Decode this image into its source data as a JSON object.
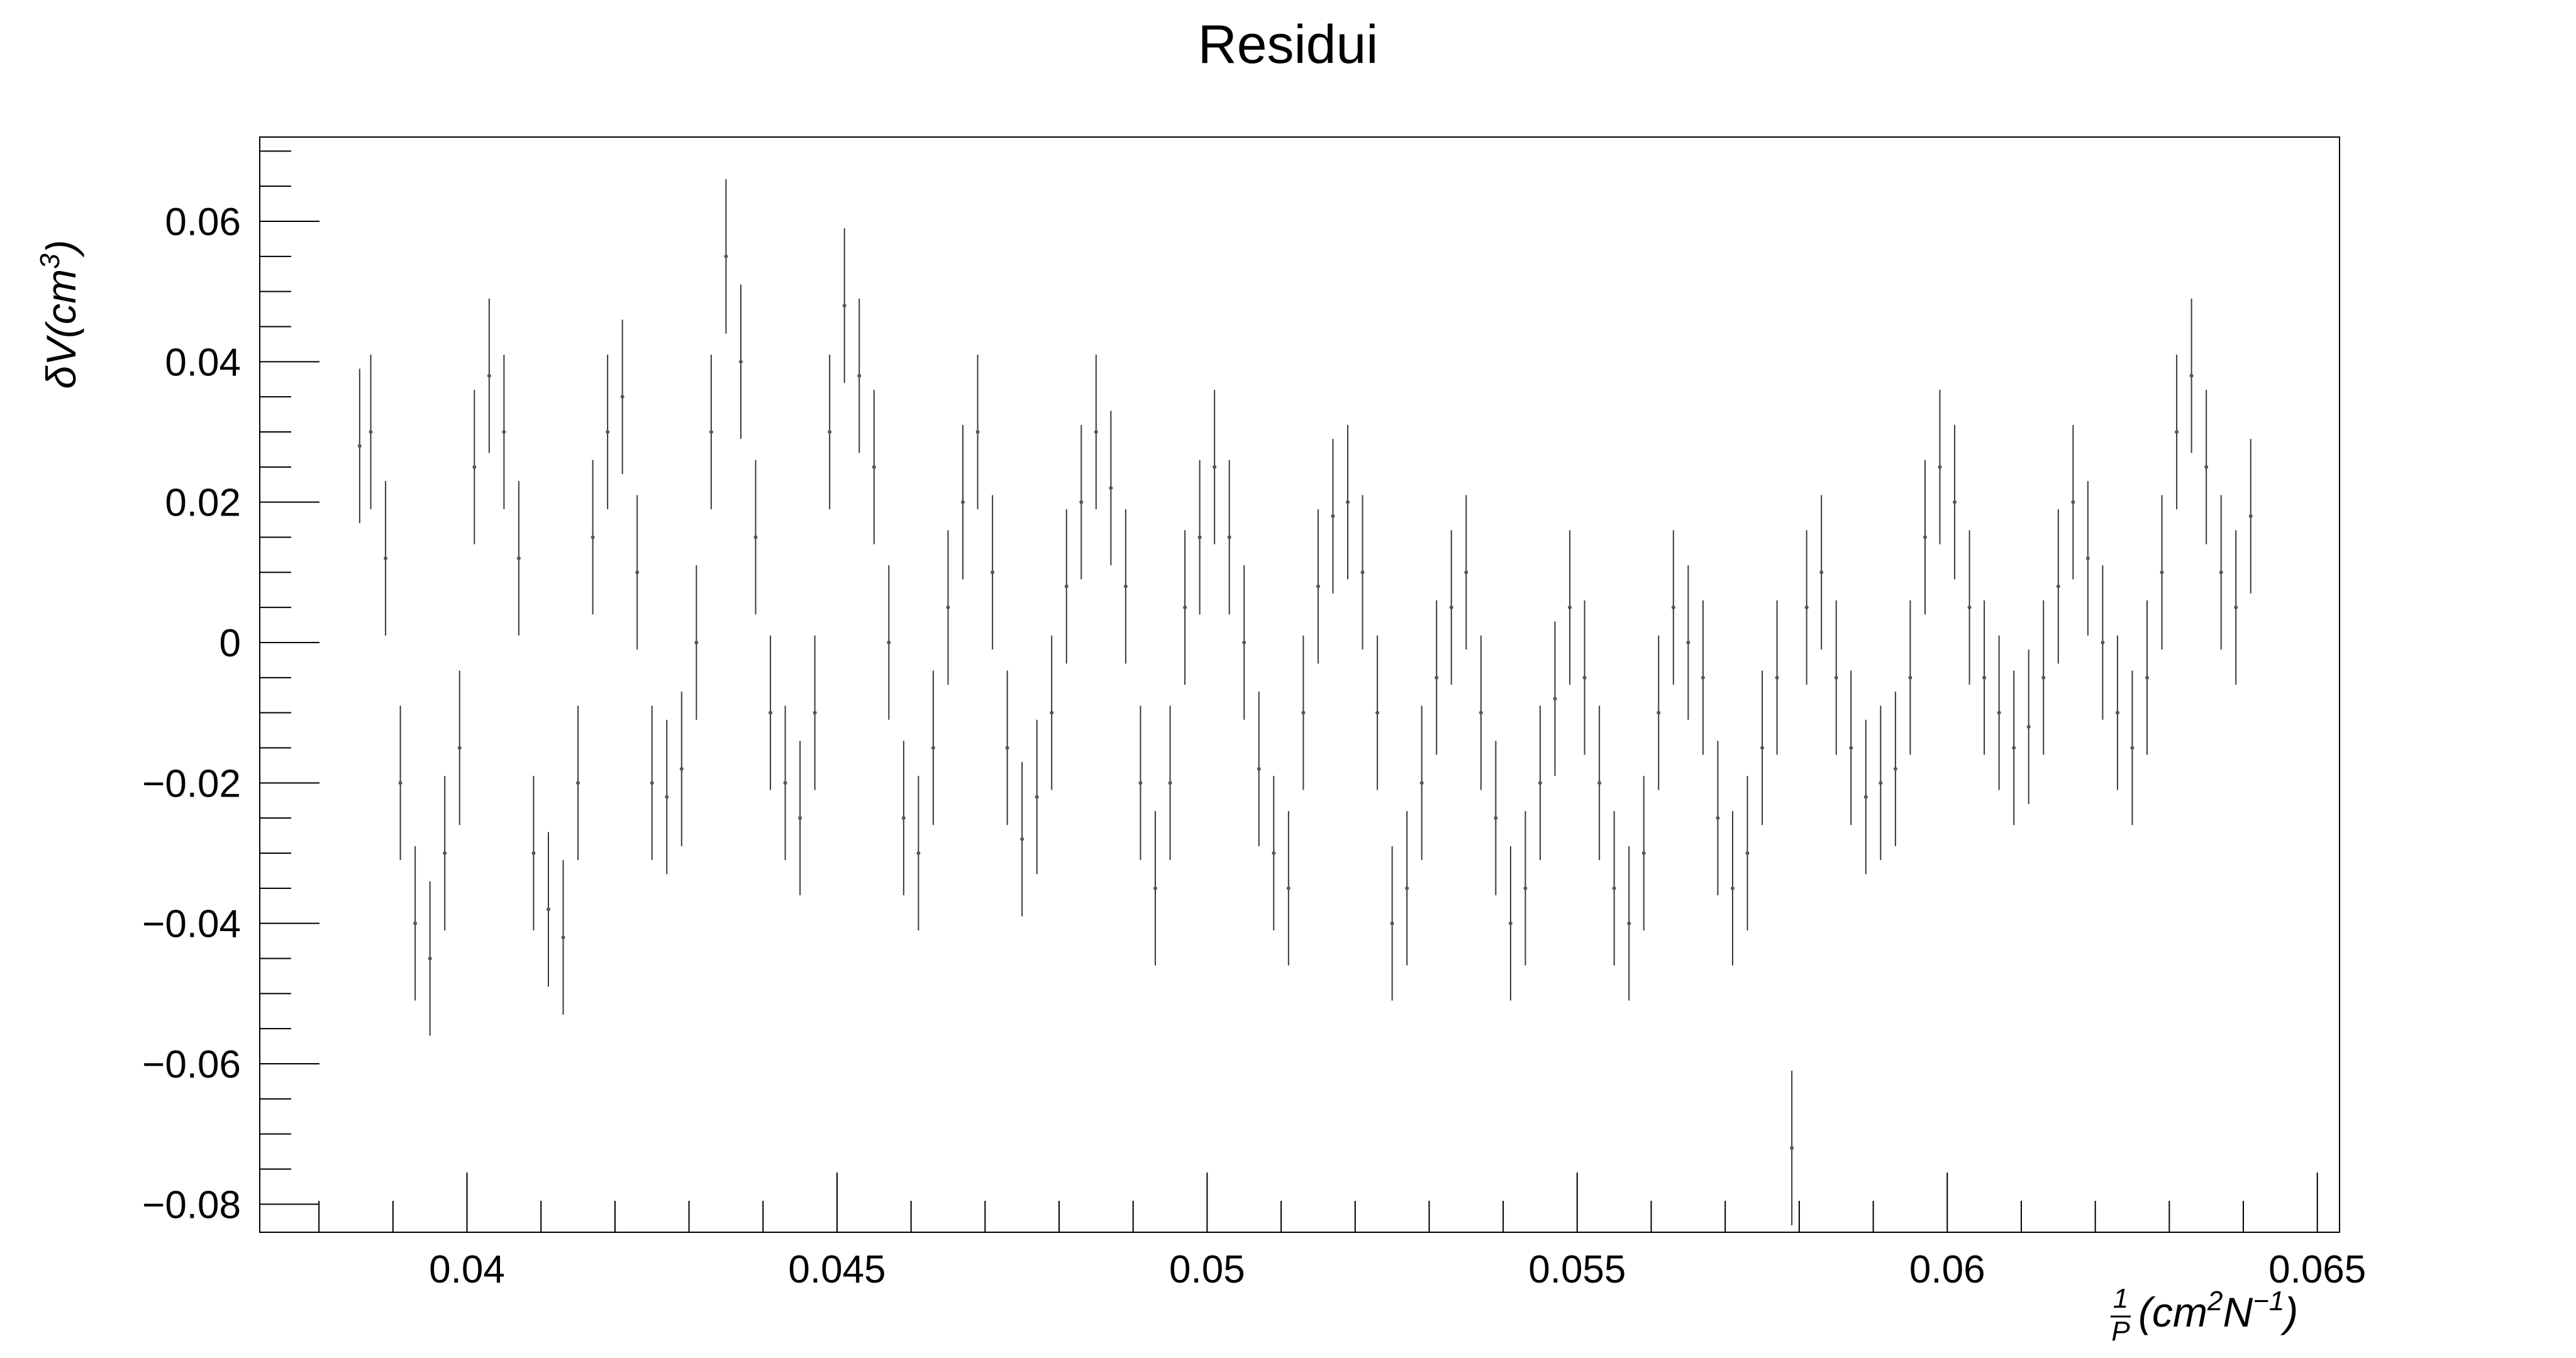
{
  "chart_data": {
    "type": "scatter",
    "title": "Residui",
    "xlabel": "1/P (cm^2 N^-1)",
    "ylabel": "δV(cm^3)",
    "xlim": [
      0.0372,
      0.0653
    ],
    "ylim": [
      -0.084,
      0.072
    ],
    "grid": false,
    "legend": "none",
    "x_ticks": [
      {
        "value": 0.04,
        "label": "0.04"
      },
      {
        "value": 0.045,
        "label": "0.045"
      },
      {
        "value": 0.05,
        "label": "0.05"
      },
      {
        "value": 0.055,
        "label": "0.055"
      },
      {
        "value": 0.06,
        "label": "0.06"
      },
      {
        "value": 0.065,
        "label": "0.065"
      }
    ],
    "y_ticks": [
      {
        "value": 0.06,
        "label": "0.06"
      },
      {
        "value": 0.04,
        "label": "0.04"
      },
      {
        "value": 0.02,
        "label": "0.02"
      },
      {
        "value": 0,
        "label": "0"
      },
      {
        "value": -0.02,
        "label": "−0.02"
      },
      {
        "value": -0.04,
        "label": "−0.04"
      },
      {
        "value": -0.06,
        "label": "−0.06"
      },
      {
        "value": -0.08,
        "label": "−0.08"
      }
    ],
    "error_bar_half_width": 0.011,
    "series": [
      {
        "marker_color": "#555555",
        "points": [
          [
            0.03855,
            0.028
          ],
          [
            0.0387,
            0.03
          ],
          [
            0.0389,
            0.012
          ],
          [
            0.0391,
            -0.02
          ],
          [
            0.0393,
            -0.04
          ],
          [
            0.0395,
            -0.045
          ],
          [
            0.0397,
            -0.03
          ],
          [
            0.0399,
            -0.015
          ],
          [
            0.0401,
            0.025
          ],
          [
            0.0403,
            0.038
          ],
          [
            0.0405,
            0.03
          ],
          [
            0.0407,
            0.012
          ],
          [
            0.0409,
            -0.03
          ],
          [
            0.0411,
            -0.038
          ],
          [
            0.0413,
            -0.042
          ],
          [
            0.0415,
            -0.02
          ],
          [
            0.0417,
            0.015
          ],
          [
            0.0419,
            0.03
          ],
          [
            0.0421,
            0.035
          ],
          [
            0.0423,
            0.01
          ],
          [
            0.0425,
            -0.02
          ],
          [
            0.0427,
            -0.022
          ],
          [
            0.0429,
            -0.018
          ],
          [
            0.0431,
            0.0
          ],
          [
            0.0433,
            0.03
          ],
          [
            0.0435,
            0.055
          ],
          [
            0.0437,
            0.04
          ],
          [
            0.0439,
            0.015
          ],
          [
            0.0441,
            -0.01
          ],
          [
            0.0443,
            -0.02
          ],
          [
            0.0445,
            -0.025
          ],
          [
            0.0447,
            -0.01
          ],
          [
            0.0449,
            0.03
          ],
          [
            0.0451,
            0.048
          ],
          [
            0.0453,
            0.038
          ],
          [
            0.0455,
            0.025
          ],
          [
            0.0457,
            0.0
          ],
          [
            0.0459,
            -0.025
          ],
          [
            0.0461,
            -0.03
          ],
          [
            0.0463,
            -0.015
          ],
          [
            0.0465,
            0.005
          ],
          [
            0.0467,
            0.02
          ],
          [
            0.0469,
            0.03
          ],
          [
            0.0471,
            0.01
          ],
          [
            0.0473,
            -0.015
          ],
          [
            0.0475,
            -0.028
          ],
          [
            0.0477,
            -0.022
          ],
          [
            0.0479,
            -0.01
          ],
          [
            0.0481,
            0.008
          ],
          [
            0.0483,
            0.02
          ],
          [
            0.0485,
            0.03
          ],
          [
            0.0487,
            0.022
          ],
          [
            0.0489,
            0.008
          ],
          [
            0.0491,
            -0.02
          ],
          [
            0.0493,
            -0.035
          ],
          [
            0.0495,
            -0.02
          ],
          [
            0.0497,
            0.005
          ],
          [
            0.0499,
            0.015
          ],
          [
            0.0501,
            0.025
          ],
          [
            0.0503,
            0.015
          ],
          [
            0.0505,
            0.0
          ],
          [
            0.0507,
            -0.018
          ],
          [
            0.0509,
            -0.03
          ],
          [
            0.0511,
            -0.035
          ],
          [
            0.0513,
            -0.01
          ],
          [
            0.0515,
            0.008
          ],
          [
            0.0517,
            0.018
          ],
          [
            0.0519,
            0.02
          ],
          [
            0.0521,
            0.01
          ],
          [
            0.0523,
            -0.01
          ],
          [
            0.0525,
            -0.04
          ],
          [
            0.0527,
            -0.035
          ],
          [
            0.0529,
            -0.02
          ],
          [
            0.0531,
            -0.005
          ],
          [
            0.0533,
            0.005
          ],
          [
            0.0535,
            0.01
          ],
          [
            0.0537,
            -0.01
          ],
          [
            0.0539,
            -0.025
          ],
          [
            0.0541,
            -0.04
          ],
          [
            0.0543,
            -0.035
          ],
          [
            0.0545,
            -0.02
          ],
          [
            0.0547,
            -0.008
          ],
          [
            0.0549,
            0.005
          ],
          [
            0.0551,
            -0.005
          ],
          [
            0.0553,
            -0.02
          ],
          [
            0.0555,
            -0.035
          ],
          [
            0.0557,
            -0.04
          ],
          [
            0.0559,
            -0.03
          ],
          [
            0.0561,
            -0.01
          ],
          [
            0.0563,
            0.005
          ],
          [
            0.0565,
            0.0
          ],
          [
            0.0567,
            -0.005
          ],
          [
            0.0569,
            -0.025
          ],
          [
            0.0571,
            -0.035
          ],
          [
            0.0573,
            -0.03
          ],
          [
            0.0575,
            -0.015
          ],
          [
            0.0577,
            -0.005
          ],
          [
            0.0579,
            -0.072
          ],
          [
            0.0581,
            0.005
          ],
          [
            0.0583,
            0.01
          ],
          [
            0.0585,
            -0.005
          ],
          [
            0.0587,
            -0.015
          ],
          [
            0.0589,
            -0.022
          ],
          [
            0.0591,
            -0.02
          ],
          [
            0.0593,
            -0.018
          ],
          [
            0.0595,
            -0.005
          ],
          [
            0.0597,
            0.015
          ],
          [
            0.0599,
            0.025
          ],
          [
            0.0601,
            0.02
          ],
          [
            0.0603,
            0.005
          ],
          [
            0.0605,
            -0.005
          ],
          [
            0.0607,
            -0.01
          ],
          [
            0.0609,
            -0.015
          ],
          [
            0.0611,
            -0.012
          ],
          [
            0.0613,
            -0.005
          ],
          [
            0.0615,
            0.008
          ],
          [
            0.0617,
            0.02
          ],
          [
            0.0619,
            0.012
          ],
          [
            0.0621,
            0.0
          ],
          [
            0.0623,
            -0.01
          ],
          [
            0.0625,
            -0.015
          ],
          [
            0.0627,
            -0.005
          ],
          [
            0.0629,
            0.01
          ],
          [
            0.0631,
            0.03
          ],
          [
            0.0633,
            0.038
          ],
          [
            0.0635,
            0.025
          ],
          [
            0.0637,
            0.01
          ],
          [
            0.0639,
            0.005
          ],
          [
            0.0641,
            0.018
          ]
        ]
      }
    ]
  }
}
